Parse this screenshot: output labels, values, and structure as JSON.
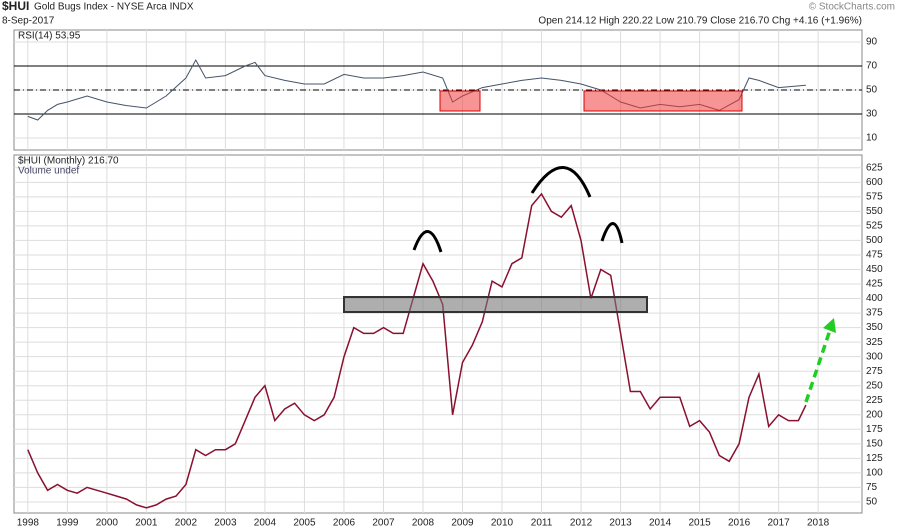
{
  "header": {
    "symbol": "$HUI",
    "name": "Gold Bugs Index - NYSE Arca INDX",
    "date": "8-Sep-2017",
    "quote": "Open 214.12 High 220.22 Low 210.79 Close 216.70 Chg +4.16 (+1.96%)",
    "credit": "© StockCharts.com"
  },
  "chart_data": [
    {
      "type": "line",
      "title": "RSI(14) 53.95",
      "color": "#44546a",
      "x": [
        1998.0,
        1998.25,
        1998.5,
        1998.75,
        1999.0,
        1999.5,
        2000.0,
        2000.5,
        2001.0,
        2001.5,
        2002.0,
        2002.25,
        2002.5,
        2003.0,
        2003.5,
        2003.75,
        2004.0,
        2004.5,
        2005.0,
        2005.5,
        2006.0,
        2006.5,
        2007.0,
        2007.5,
        2008.0,
        2008.5,
        2008.75,
        2009.0,
        2009.5,
        2010.0,
        2010.5,
        2011.0,
        2011.5,
        2012.0,
        2012.5,
        2013.0,
        2013.5,
        2014.0,
        2014.5,
        2015.0,
        2015.5,
        2016.0,
        2016.25,
        2016.5,
        2017.0,
        2017.69
      ],
      "values": [
        28,
        25,
        33,
        38,
        40,
        45,
        40,
        37,
        35,
        45,
        60,
        75,
        60,
        62,
        70,
        73,
        62,
        58,
        55,
        55,
        63,
        60,
        60,
        62,
        65,
        60,
        40,
        45,
        52,
        55,
        58,
        60,
        58,
        55,
        50,
        40,
        35,
        38,
        36,
        38,
        33,
        42,
        60,
        58,
        52,
        53.95
      ],
      "xlim": [
        1997.65,
        2019.11
      ],
      "ylim": [
        0,
        100
      ],
      "yticks": [
        10,
        30,
        50,
        70,
        90
      ],
      "ref_lines": [
        70,
        50,
        30
      ],
      "ref_line_styles": [
        "solid",
        "dashdot",
        "solid"
      ],
      "grid": true
    },
    {
      "type": "line",
      "title": "$HUI (Monthly) 216.70",
      "subtitle": "Volume undef",
      "color": "#8a1030",
      "x": [
        1998.0,
        1998.25,
        1998.5,
        1998.75,
        1999.0,
        1999.25,
        1999.5,
        1999.75,
        2000.0,
        2000.25,
        2000.5,
        2000.75,
        2001.0,
        2001.25,
        2001.5,
        2001.75,
        2002.0,
        2002.25,
        2002.5,
        2002.75,
        2003.0,
        2003.25,
        2003.5,
        2003.75,
        2004.0,
        2004.25,
        2004.5,
        2004.75,
        2005.0,
        2005.25,
        2005.5,
        2005.75,
        2006.0,
        2006.25,
        2006.5,
        2006.75,
        2007.0,
        2007.25,
        2007.5,
        2007.75,
        2008.0,
        2008.25,
        2008.5,
        2008.75,
        2009.0,
        2009.25,
        2009.5,
        2009.75,
        2010.0,
        2010.25,
        2010.5,
        2010.75,
        2011.0,
        2011.25,
        2011.5,
        2011.75,
        2012.0,
        2012.25,
        2012.5,
        2012.75,
        2013.0,
        2013.25,
        2013.5,
        2013.75,
        2014.0,
        2014.25,
        2014.5,
        2014.75,
        2015.0,
        2015.25,
        2015.5,
        2015.75,
        2016.0,
        2016.25,
        2016.5,
        2016.75,
        2017.0,
        2017.25,
        2017.5,
        2017.69
      ],
      "values": [
        140,
        100,
        70,
        80,
        70,
        65,
        75,
        70,
        65,
        60,
        55,
        45,
        40,
        45,
        55,
        60,
        80,
        140,
        130,
        140,
        140,
        150,
        190,
        230,
        250,
        190,
        210,
        220,
        200,
        190,
        200,
        230,
        300,
        350,
        340,
        340,
        350,
        340,
        340,
        400,
        460,
        430,
        390,
        200,
        290,
        320,
        360,
        430,
        420,
        460,
        470,
        560,
        580,
        550,
        540,
        560,
        500,
        400,
        450,
        440,
        340,
        240,
        240,
        210,
        230,
        230,
        230,
        180,
        190,
        170,
        130,
        120,
        150,
        230,
        270,
        180,
        200,
        190,
        190,
        216.7
      ],
      "xlim": [
        1997.65,
        2019.11
      ],
      "ylim": [
        31,
        647
      ],
      "yticks": [
        50,
        75,
        100,
        125,
        150,
        175,
        200,
        225,
        250,
        275,
        300,
        325,
        350,
        375,
        400,
        425,
        450,
        475,
        500,
        525,
        550,
        575,
        600,
        625
      ],
      "xticks": [
        1998,
        1999,
        2000,
        2001,
        2002,
        2003,
        2004,
        2005,
        2006,
        2007,
        2008,
        2009,
        2010,
        2011,
        2012,
        2013,
        2014,
        2015,
        2016,
        2017,
        2018
      ],
      "grid": true
    }
  ]
}
